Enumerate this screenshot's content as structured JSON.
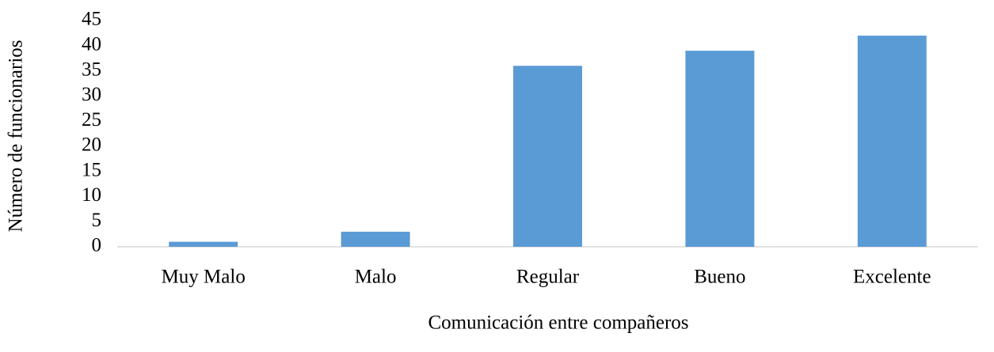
{
  "chart_data": {
    "type": "bar",
    "xlabel": "Comunicación entre compañeros",
    "ylabel": "Número de funcionarios",
    "categories": [
      "Muy Malo",
      "Malo",
      "Regular",
      "Bueno",
      "Excelente"
    ],
    "values": [
      1,
      3,
      36,
      39,
      42
    ],
    "color": "#5b9bd5",
    "ylim": [
      0,
      45
    ],
    "yticks": [
      0,
      5,
      10,
      15,
      20,
      25,
      30,
      35,
      40,
      45
    ],
    "grid": false
  }
}
